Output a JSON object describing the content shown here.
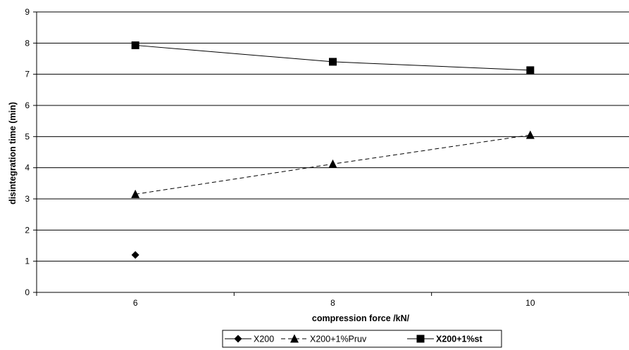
{
  "chart_data": {
    "type": "line",
    "title": "",
    "xlabel": "compression force /kN/",
    "ylabel": "disintegration time  (min)",
    "categories": [
      "6",
      "8",
      "10"
    ],
    "ylim": [
      0,
      9
    ],
    "yticks": [
      "0",
      "1",
      "2",
      "3",
      "4",
      "5",
      "6",
      "7",
      "8",
      "9"
    ],
    "grid": "horizontal",
    "legend_position": "bottom",
    "series": [
      {
        "name": "X200",
        "values": [
          1.2,
          null,
          null
        ],
        "marker": "diamond",
        "line": "solid",
        "bold_label": false
      },
      {
        "name": "X200+1%Pruv",
        "values": [
          3.15,
          4.12,
          5.05
        ],
        "marker": "triangle",
        "line": "dashed",
        "bold_label": false
      },
      {
        "name": "X200+1%st",
        "values": [
          7.93,
          7.4,
          7.13
        ],
        "marker": "square",
        "line": "solid",
        "bold_label": true
      }
    ],
    "colors": {
      "line": "#000000",
      "grid": "#000000",
      "background": "#ffffff"
    }
  }
}
